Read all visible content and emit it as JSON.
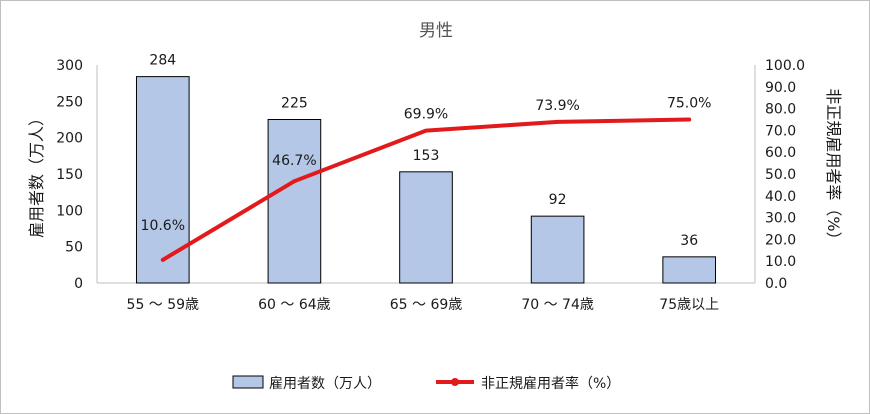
{
  "chart_data": {
    "type": "bar+line",
    "title": "男性",
    "categories": [
      "55 ～ 59歳",
      "60 ～ 64歳",
      "65 ～ 69歳",
      "70 ～ 74歳",
      "75歳以上"
    ],
    "series": [
      {
        "name": "雇用者数（万人）",
        "type": "bar",
        "axis": "left",
        "values": [
          284,
          225,
          153,
          92,
          36
        ],
        "labels": [
          "284",
          "225",
          "153",
          "92",
          "36"
        ],
        "color": "#b4c7e7"
      },
      {
        "name": "非正規雇用者率（%）",
        "type": "line",
        "axis": "right",
        "values": [
          10.6,
          46.7,
          69.9,
          73.9,
          75.0
        ],
        "labels": [
          "10.6%",
          "46.7%",
          "69.9%",
          "73.9%",
          "75.0%"
        ],
        "color": "#e31a1c"
      }
    ],
    "ylabel_left": "雇用者数（万人）",
    "ylabel_right": "非正規雇用者率（%）",
    "ylim_left": [
      0,
      300
    ],
    "ylim_right": [
      0,
      100
    ],
    "yticks_left": [
      "0",
      "50",
      "100",
      "150",
      "200",
      "250",
      "300"
    ],
    "yticks_right": [
      "0.0",
      "10.0",
      "20.0",
      "30.0",
      "40.0",
      "50.0",
      "60.0",
      "70.0",
      "80.0",
      "90.0",
      "100.0"
    ],
    "legend_position": "bottom",
    "grid": false
  }
}
